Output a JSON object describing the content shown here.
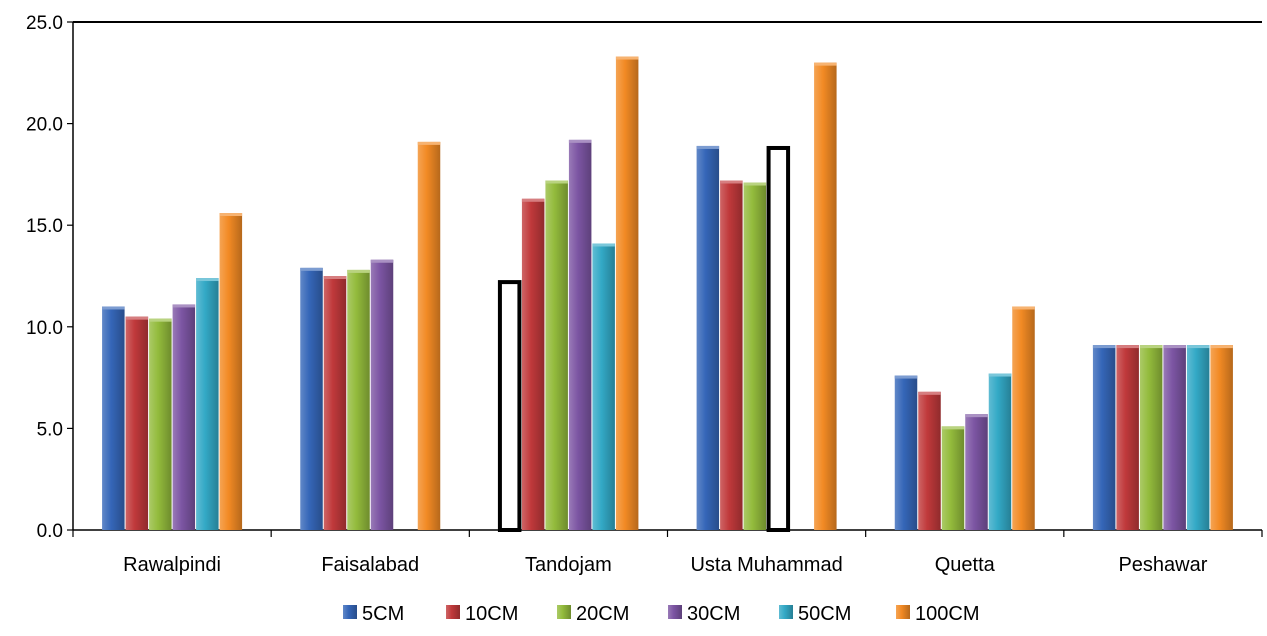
{
  "chart_data": {
    "type": "bar",
    "title": "",
    "xlabel": "",
    "ylabel": "",
    "ylim": [
      0,
      25
    ],
    "yticks": [
      "0.0",
      "5.0",
      "10.0",
      "15.0",
      "20.0",
      "25.0"
    ],
    "grid": false,
    "legend_position": "bottom",
    "categories": [
      "Rawalpindi",
      "Faisalabad",
      "Tandojam",
      "Usta Muhammad",
      "Quetta",
      "Peshawar"
    ],
    "series": [
      {
        "name": "5CM",
        "color": "#3566b8",
        "values": [
          11.0,
          12.9,
          12.2,
          18.9,
          7.6,
          9.1
        ],
        "outlined": [
          false,
          false,
          true,
          false,
          false,
          false
        ]
      },
      {
        "name": "10CM",
        "color": "#c0393b",
        "values": [
          10.5,
          12.5,
          16.3,
          17.2,
          6.8,
          9.1
        ],
        "outlined": [
          false,
          false,
          false,
          false,
          false,
          false
        ]
      },
      {
        "name": "20CM",
        "color": "#93bb3c",
        "values": [
          10.4,
          12.8,
          17.2,
          17.1,
          5.1,
          9.1
        ],
        "outlined": [
          false,
          false,
          false,
          false,
          false,
          false
        ]
      },
      {
        "name": "30CM",
        "color": "#7c55a3",
        "values": [
          11.1,
          13.3,
          19.2,
          18.8,
          5.7,
          9.1
        ],
        "outlined": [
          false,
          false,
          false,
          true,
          false,
          false
        ]
      },
      {
        "name": "50CM",
        "color": "#33a9c6",
        "values": [
          12.4,
          null,
          14.1,
          null,
          7.7,
          9.1
        ],
        "outlined": [
          false,
          false,
          false,
          false,
          false,
          false
        ]
      },
      {
        "name": "100CM",
        "color": "#f28a24",
        "values": [
          15.6,
          19.1,
          23.3,
          23.0,
          11.0,
          9.1
        ],
        "outlined": [
          false,
          false,
          false,
          false,
          false,
          false
        ]
      }
    ]
  }
}
